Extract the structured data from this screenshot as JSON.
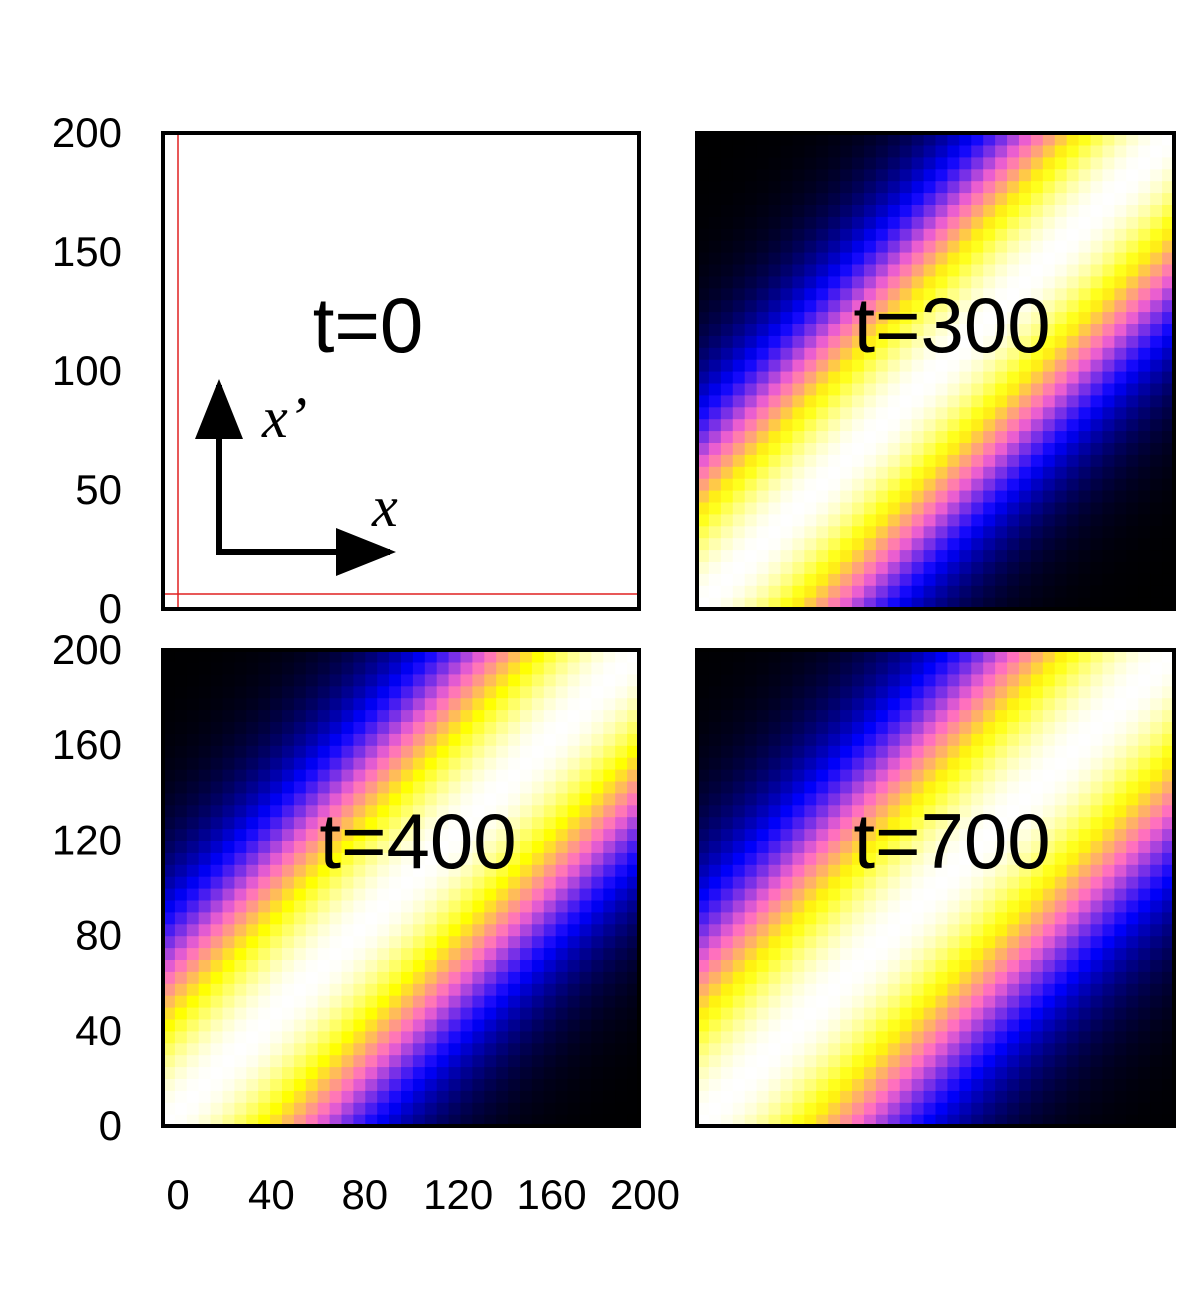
{
  "chart_data": {
    "type": "heatmap",
    "description_axes": {
      "x_range": [
        0,
        200
      ],
      "y_range": [
        0,
        200
      ],
      "x_ticks": [
        "0",
        "40",
        "80",
        "120",
        "160",
        "200"
      ],
      "y_ticks_top_row": [
        "0",
        "50",
        "100",
        "150",
        "200"
      ],
      "y_ticks_bottom_row": [
        "0",
        "40",
        "80",
        "120",
        "160",
        "200"
      ]
    },
    "colormap": [
      "#000000",
      "#0000ff",
      "#ff66cc",
      "#ffff00",
      "#ffffff"
    ],
    "panels": [
      {
        "label": "t=0",
        "time": 0,
        "field": "uniform",
        "marker_x": 5,
        "marker_y": 5,
        "marker_color": "#e02020",
        "inset": {
          "x_label": "x",
          "y_label": "x’"
        }
      },
      {
        "label": "t=300",
        "time": 300,
        "field": "diagonal",
        "width": 70,
        "offdiag_decay": 1.0
      },
      {
        "label": "t=400",
        "time": 400,
        "field": "diagonal",
        "width": 75,
        "offdiag_decay": 1.0
      },
      {
        "label": "t=700",
        "time": 700,
        "field": "diagonal",
        "width": 80,
        "offdiag_decay": 1.0
      }
    ]
  }
}
